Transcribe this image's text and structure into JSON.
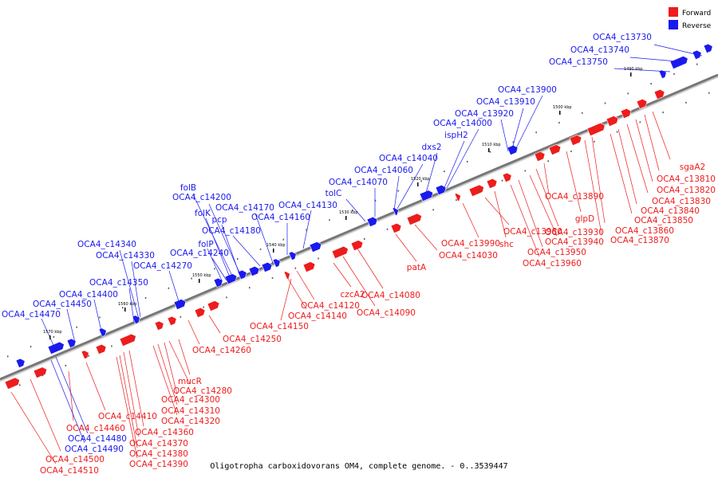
{
  "legend": [
    {
      "label": "Forward",
      "color": "#ee1c1c"
    },
    {
      "label": "Reverse",
      "color": "#1a1aee"
    }
  ],
  "colors": {
    "forward": "#ee1c1c",
    "reverse": "#1a1aee",
    "backbone": "#777777"
  },
  "caption": "Oligotropha carboxidovorans OM4, complete genome. - 0..3539447",
  "ticks": [
    "1490 kbp",
    "1500 kbp",
    "1510 kbp",
    "1520 kbp",
    "1530 kbp",
    "1540 kbp",
    "1550 kbp",
    "1560 kbp",
    "1570 kbp"
  ],
  "forward_genes": [
    "sgaA2",
    "OCA4_c13810",
    "OCA4_c13820",
    "OCA4_c13830",
    "OCA4_c13840",
    "OCA4_c13850",
    "OCA4_c13860",
    "OCA4_c13870",
    "glpD",
    "OCA4_c13890",
    "OCA4_c13930",
    "OCA4_c13940",
    "OCA4_c13950",
    "OCA4_c13960",
    "shc",
    "OCA4_c13980",
    "OCA4_c13990",
    "OCA4_c14030",
    "patA",
    "OCA4_c14080",
    "OCA4_c14090",
    "czcA2",
    "OCA4_c14120",
    "OCA4_c14140",
    "OCA4_c14150",
    "OCA4_c14250",
    "OCA4_c14260",
    "mucR",
    "OCA4_c14280",
    "OCA4_c14300",
    "OCA4_c14310",
    "OCA4_c14320",
    "OCA4_c14360",
    "OCA4_c14370",
    "OCA4_c14380",
    "OCA4_c14390",
    "OCA4_c14410",
    "OCA4_c14460",
    "OCA4_c14500",
    "OCA4_c14510"
  ],
  "reverse_genes": [
    "OCA4_c13730",
    "OCA4_c13740",
    "OCA4_c13750",
    "OCA4_c13900",
    "OCA4_c13910",
    "OCA4_c13920",
    "OCA4_c14000",
    "ispH2",
    "dxs2",
    "OCA4_c14040",
    "OCA4_c14060",
    "OCA4_c14070",
    "tolC",
    "OCA4_c14130",
    "OCA4_c14160",
    "OCA4_c14170",
    "OCA4_c14180",
    "folB",
    "OCA4_c14200",
    "folK",
    "pcp",
    "OCA4_c14240",
    "folP",
    "OCA4_c14270",
    "OCA4_c14340",
    "OCA4_c14330",
    "OCA4_c14350",
    "OCA4_c14400",
    "OCA4_c14450",
    "OCA4_c14470",
    "OCA4_c14480",
    "OCA4_c14490"
  ]
}
